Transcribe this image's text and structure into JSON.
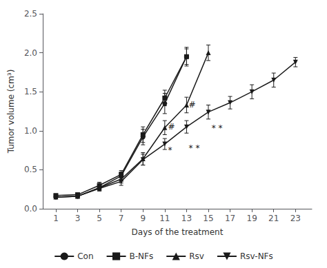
{
  "chart_data": {
    "type": "line",
    "xlabel": "Days of the treatment",
    "ylabel": "Tumor volume (cm³)",
    "x": [
      1,
      3,
      5,
      7,
      9,
      11,
      13,
      15,
      17,
      19,
      21,
      23
    ],
    "color": "#1a1a1a",
    "series": [
      {
        "name": "Con",
        "marker": "circle",
        "values": [
          0.15,
          0.16,
          0.27,
          0.42,
          0.92,
          1.35,
          1.95,
          null,
          null,
          null,
          null,
          null
        ],
        "errors": [
          0.02,
          0.02,
          0.04,
          0.05,
          0.1,
          0.13,
          0.12,
          null,
          null,
          null,
          null,
          null
        ]
      },
      {
        "name": "B-NFs",
        "marker": "square",
        "values": [
          0.17,
          0.18,
          0.3,
          0.44,
          0.95,
          1.42,
          1.95,
          null,
          null,
          null,
          null,
          null
        ],
        "errors": [
          0.02,
          0.02,
          0.04,
          0.05,
          0.1,
          0.1,
          0.1,
          null,
          null,
          null,
          null,
          null
        ]
      },
      {
        "name": "Rsv",
        "marker": "triangle",
        "values": [
          0.15,
          0.16,
          0.27,
          0.38,
          0.64,
          1.04,
          1.33,
          2.0,
          null,
          null,
          null,
          null
        ],
        "errors": [
          0.02,
          0.02,
          0.04,
          0.05,
          0.08,
          0.09,
          0.1,
          0.1,
          null,
          null,
          null,
          null
        ]
      },
      {
        "name": "Rsv-NFs",
        "marker": "triangle_down",
        "values": [
          0.15,
          0.16,
          0.26,
          0.35,
          0.63,
          0.83,
          1.05,
          1.24,
          1.36,
          1.5,
          1.65,
          1.88
        ],
        "errors": [
          0.02,
          0.02,
          0.03,
          0.05,
          0.07,
          0.07,
          0.08,
          0.09,
          0.08,
          0.09,
          0.09,
          0.06
        ]
      }
    ],
    "annotations": [
      {
        "text": "*",
        "x": 11.3,
        "y": 0.7
      },
      {
        "text": "#",
        "x": 11.3,
        "y": 1.0
      },
      {
        "text": "* *",
        "x": 13.2,
        "y": 0.72
      },
      {
        "text": "#",
        "x": 13.2,
        "y": 1.28
      },
      {
        "text": "* *",
        "x": 15.3,
        "y": 0.98
      }
    ],
    "xlim": [
      -0.2,
      24.5
    ],
    "xticks": [
      1,
      3,
      5,
      7,
      9,
      11,
      13,
      15,
      17,
      19,
      21,
      23
    ],
    "ylim": [
      0.0,
      2.5
    ],
    "yticks": [
      {
        "value": 0,
        "label": "0.0"
      },
      0.5,
      {
        "value": 1,
        "label": "1.0"
      },
      1.5,
      {
        "value": 2,
        "label": "2.0"
      },
      2.5
    ],
    "grid": false,
    "legend": "bottom"
  }
}
